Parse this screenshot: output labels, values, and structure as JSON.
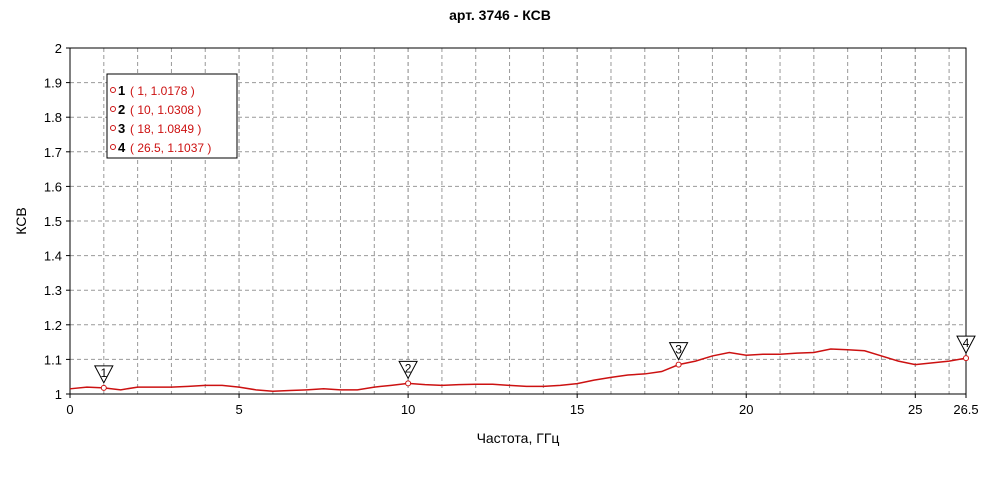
{
  "chart_data": {
    "type": "line",
    "title": "арт. 3746 - КСВ",
    "x_label": "Частота, ГГц",
    "y_label": "КСВ",
    "x": [
      0,
      0.5,
      1,
      1.5,
      2,
      2.5,
      3,
      3.5,
      4,
      4.5,
      5,
      5.5,
      6,
      6.5,
      7,
      7.5,
      8,
      8.5,
      9,
      9.5,
      10,
      10.5,
      11,
      11.5,
      12,
      12.5,
      13,
      13.5,
      14,
      14.5,
      15,
      15.5,
      16,
      16.5,
      17,
      17.5,
      18,
      18.5,
      19,
      19.5,
      20,
      20.5,
      21,
      21.5,
      22,
      22.5,
      23,
      23.5,
      24,
      24.5,
      25,
      25.5,
      26,
      26.5
    ],
    "series": [
      {
        "color": "#cc1111",
        "values": [
          1.015,
          1.02,
          1.0178,
          1.012,
          1.02,
          1.02,
          1.02,
          1.022,
          1.025,
          1.025,
          1.02,
          1.012,
          1.008,
          1.01,
          1.012,
          1.015,
          1.012,
          1.012,
          1.02,
          1.025,
          1.0308,
          1.027,
          1.025,
          1.027,
          1.028,
          1.028,
          1.025,
          1.022,
          1.022,
          1.025,
          1.03,
          1.04,
          1.048,
          1.055,
          1.058,
          1.065,
          1.0849,
          1.095,
          1.11,
          1.12,
          1.112,
          1.115,
          1.115,
          1.118,
          1.12,
          1.13,
          1.128,
          1.125,
          1.11,
          1.095,
          1.085,
          1.09,
          1.095,
          1.1037
        ]
      }
    ],
    "markers": {
      "labels": [
        "1",
        "2",
        "3",
        "4"
      ],
      "x": [
        1,
        10,
        18,
        26.5
      ],
      "y": [
        1.0178,
        1.0308,
        1.0849,
        1.1037
      ],
      "value_labels": [
        "( 1, 1.0178 )",
        "( 10, 1.0308 )",
        "( 18, 1.0849 )",
        "( 26.5, 1.1037 )"
      ]
    },
    "xlim": [
      0,
      26.5
    ],
    "ylim": [
      1,
      2
    ],
    "xticks": [
      0,
      5,
      10,
      15,
      20,
      25,
      26.5
    ],
    "yticks": [
      1,
      1.1,
      1.2,
      1.3,
      1.4,
      1.5,
      1.6,
      1.7,
      1.8,
      1.9,
      2
    ],
    "grid": true,
    "minor_grid_step": 1
  }
}
